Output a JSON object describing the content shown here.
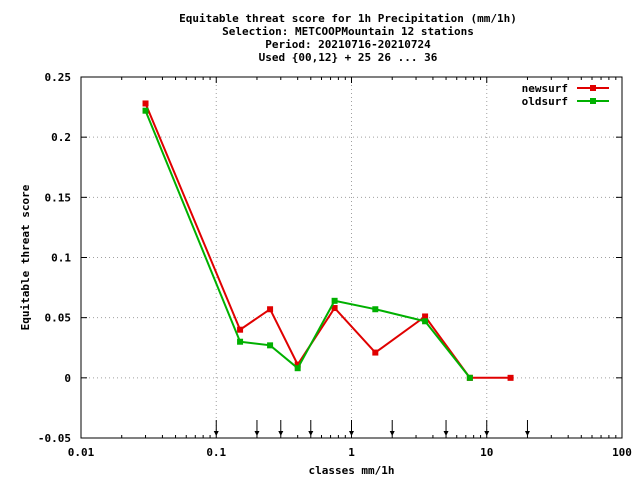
{
  "chart_data": {
    "type": "line",
    "title_lines": [
      "Equitable threat score  for 1h Precipitation (mm/1h)",
      "Selection: METCOOPMountain     12 stations",
      "Period: 20210716-20210724",
      "Used {00,12} + 25 26 ... 36"
    ],
    "xlabel": "classes mm/1h",
    "ylabel": "Equitable threat score",
    "x_scale": "log",
    "xlim": [
      0.01,
      100
    ],
    "ylim": [
      -0.05,
      0.25
    ],
    "x_ticks": [
      0.01,
      0.1,
      1,
      10,
      100
    ],
    "x_tick_labels": [
      "0.01",
      "0.1",
      "1",
      "10",
      "100"
    ],
    "y_ticks": [
      -0.05,
      0,
      0.05,
      0.1,
      0.15,
      0.2,
      0.25
    ],
    "y_tick_labels": [
      "-0.05",
      "0",
      "0.05",
      "0.1",
      "0.15",
      "0.2",
      "0.25"
    ],
    "grid": true,
    "legend_position": "top-right",
    "class_markers": [
      0.1,
      0.2,
      0.3,
      0.5,
      1,
      2,
      5,
      10,
      20
    ],
    "series": [
      {
        "name": "newsurf",
        "color": "#e00000",
        "x": [
          0.03,
          0.15,
          0.25,
          0.4,
          0.75,
          1.5,
          3.5,
          7.5,
          15
        ],
        "y": [
          0.228,
          0.04,
          0.057,
          0.011,
          0.058,
          0.021,
          0.051,
          0.0,
          0.0
        ]
      },
      {
        "name": "oldsurf",
        "color": "#00b000",
        "x": [
          0.03,
          0.15,
          0.25,
          0.4,
          0.75,
          1.5,
          3.5,
          7.5
        ],
        "y": [
          0.222,
          0.03,
          0.027,
          0.008,
          0.064,
          0.057,
          0.047,
          0.0
        ]
      }
    ]
  }
}
